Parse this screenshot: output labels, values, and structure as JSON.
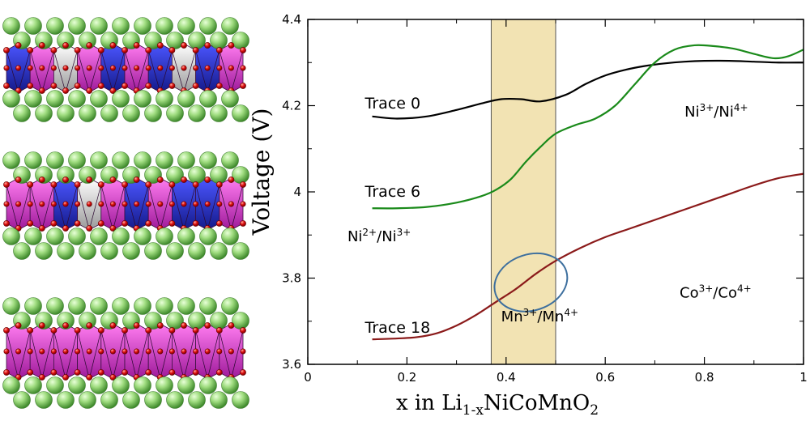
{
  "chart_data": {
    "type": "line",
    "title": "",
    "xlabel": "x in Li",
    "xlabel_sub": "1-x",
    "xlabel_tail": "NiCoMnO",
    "xlabel_tail_sub": "2",
    "ylabel": "Voltage (V)",
    "xlim": [
      0,
      1
    ],
    "ylim": [
      3.6,
      4.4
    ],
    "grid": false,
    "x_ticks": [
      0,
      0.2,
      0.4,
      0.6,
      0.8,
      1
    ],
    "x_tick_labels": [
      "0",
      "0.2",
      "0.4",
      "0.6",
      "0.8",
      "1"
    ],
    "y_ticks": [
      3.6,
      3.8,
      4.0,
      4.2,
      4.4
    ],
    "y_tick_labels": [
      "3.6",
      "3.8",
      "4",
      "4.2",
      "4.4"
    ],
    "shaded_region": {
      "x": [
        0.37,
        0.5
      ],
      "color": "#f2e3b3"
    },
    "series": [
      {
        "name": "Trace 0",
        "color": "#000000",
        "x": [
          0.13,
          0.18,
          0.24,
          0.3,
          0.35,
          0.39,
          0.43,
          0.47,
          0.52,
          0.56,
          0.6,
          0.64,
          0.68,
          0.72,
          0.76,
          0.8,
          0.85,
          0.9,
          0.95,
          1.0
        ],
        "y": [
          4.175,
          4.17,
          4.175,
          4.19,
          4.205,
          4.215,
          4.215,
          4.21,
          4.225,
          4.25,
          4.27,
          4.283,
          4.292,
          4.298,
          4.302,
          4.304,
          4.304,
          4.302,
          4.3,
          4.3
        ]
      },
      {
        "name": "Trace 6",
        "color": "#1a8a1a",
        "x": [
          0.13,
          0.18,
          0.24,
          0.3,
          0.35,
          0.38,
          0.41,
          0.44,
          0.47,
          0.5,
          0.54,
          0.58,
          0.62,
          0.66,
          0.7,
          0.74,
          0.78,
          0.82,
          0.86,
          0.9,
          0.94,
          0.97,
          1.0
        ],
        "y": [
          3.962,
          3.962,
          3.965,
          3.975,
          3.99,
          4.005,
          4.03,
          4.07,
          4.105,
          4.135,
          4.155,
          4.17,
          4.2,
          4.25,
          4.3,
          4.33,
          4.34,
          4.338,
          4.332,
          4.32,
          4.31,
          4.315,
          4.33
        ]
      },
      {
        "name": "Trace 18",
        "color": "#8b1a1a",
        "x": [
          0.13,
          0.18,
          0.22,
          0.26,
          0.3,
          0.34,
          0.38,
          0.42,
          0.46,
          0.5,
          0.55,
          0.6,
          0.65,
          0.7,
          0.75,
          0.8,
          0.85,
          0.9,
          0.95,
          1.0
        ],
        "y": [
          3.658,
          3.66,
          3.663,
          3.672,
          3.69,
          3.715,
          3.745,
          3.775,
          3.81,
          3.84,
          3.87,
          3.895,
          3.915,
          3.935,
          3.955,
          3.975,
          3.995,
          4.015,
          4.032,
          4.042
        ]
      }
    ],
    "annotations": [
      {
        "id": "ni34",
        "base1": "Ni",
        "sup1": "3+",
        "sep": "/",
        "base2": "Ni",
        "sup2": "4+",
        "x": 0.76,
        "y": 4.175
      },
      {
        "id": "ni23",
        "base1": "Ni",
        "sup1": "2+",
        "sep": "/",
        "base2": "Ni",
        "sup2": "3+",
        "x": 0.08,
        "y": 3.885
      },
      {
        "id": "co34",
        "base1": "Co",
        "sup1": "3+",
        "sep": "/",
        "base2": "Co",
        "sup2": "4+",
        "x": 0.75,
        "y": 3.755
      },
      {
        "id": "mn34",
        "base1": "Mn",
        "sup1": "3+",
        "sep": "/",
        "base2": "Mn",
        "sup2": "4+",
        "x": 0.39,
        "y": 3.7
      }
    ],
    "ellipse": {
      "cx": 0.45,
      "cy": 3.79,
      "rx": 0.075,
      "ry": 0.065,
      "rotation": -18,
      "color": "#3d6f9e"
    }
  }
}
